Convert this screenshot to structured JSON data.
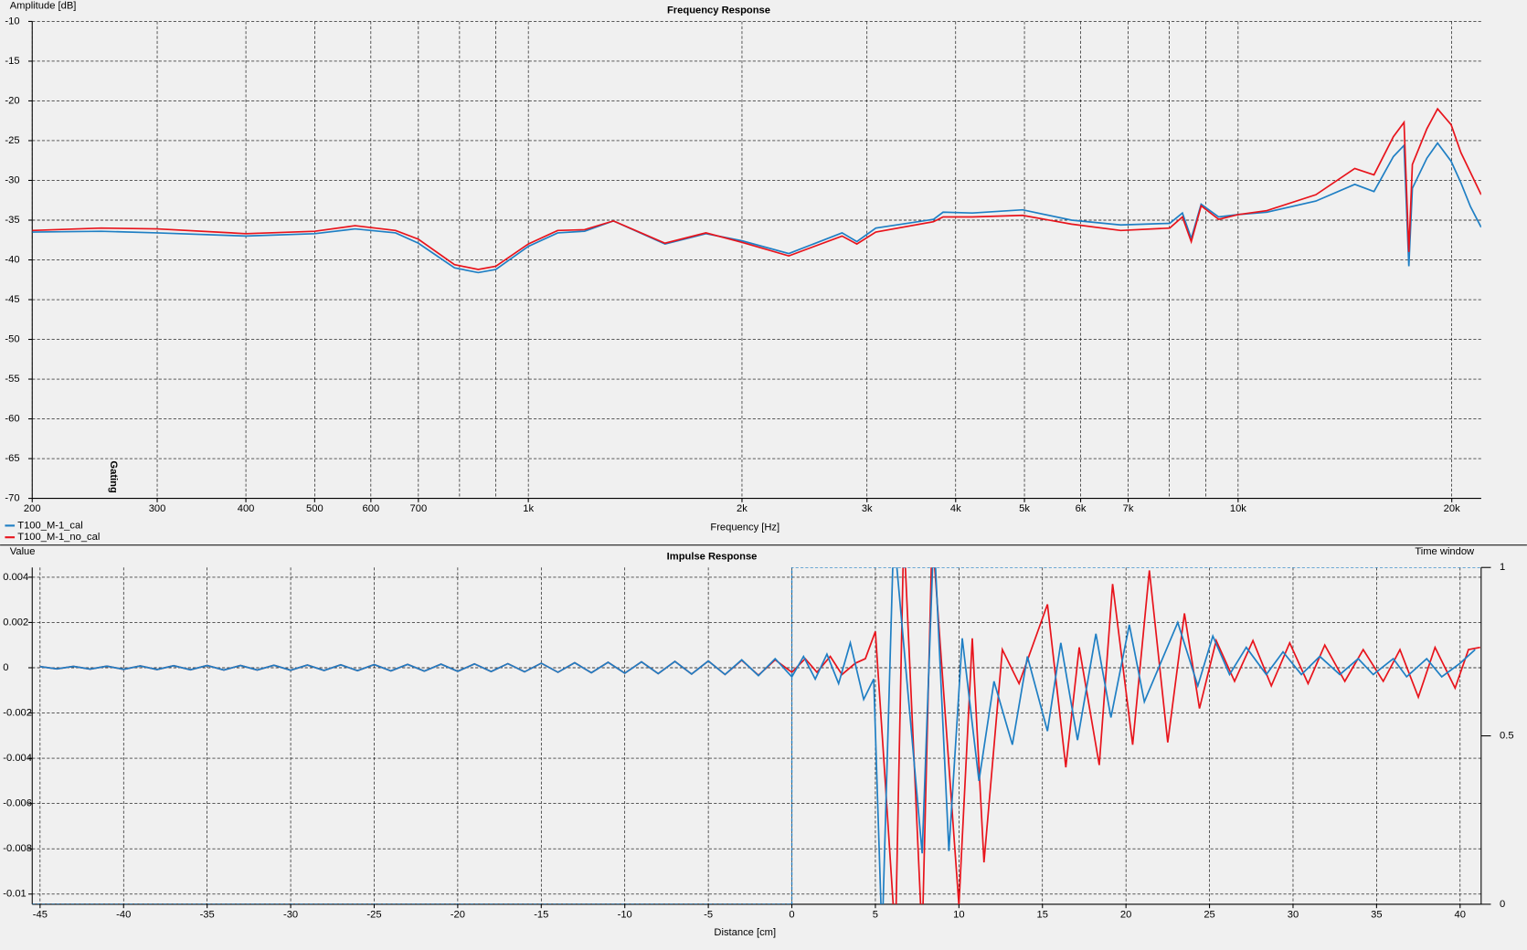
{
  "chart_data": [
    {
      "type": "line",
      "title": "Frequency Response",
      "y_label": "Amplitude [dB]",
      "x_label": "Frequency [Hz]",
      "xscale": "log",
      "xlim": [
        200,
        22000
      ],
      "ylim": [
        -70,
        -10
      ],
      "xticks": [
        200,
        300,
        400,
        500,
        600,
        700,
        {
          "value": 1000,
          "label": "1k"
        },
        {
          "value": 2000,
          "label": "2k"
        },
        {
          "value": 3000,
          "label": "3k"
        },
        {
          "value": 4000,
          "label": "4k"
        },
        {
          "value": 5000,
          "label": "5k"
        },
        {
          "value": 6000,
          "label": "6k"
        },
        {
          "value": 7000,
          "label": "7k"
        },
        {
          "value": 10000,
          "label": "10k"
        },
        {
          "value": 20000,
          "label": "20k"
        }
      ],
      "xgrid_unlabeled": [
        800,
        900,
        8000,
        9000
      ],
      "yticks": [
        -70,
        -65,
        -60,
        -55,
        -50,
        -45,
        -40,
        -35,
        -30,
        -25,
        -20,
        -15,
        -10
      ],
      "grid": true,
      "marker": {
        "label": "Gating",
        "x": 260
      },
      "x": [
        200,
        250,
        300,
        400,
        500,
        570,
        650,
        700,
        787,
        850,
        900,
        1000,
        1100,
        1200,
        1318,
        1558,
        1779,
        2000,
        2328,
        2767,
        2903,
        3087,
        3722,
        3840,
        4222,
        4970,
        5826,
        6833,
        8010,
        8347,
        8590,
        8870,
        9390,
        10000,
        10980,
        12870,
        14600,
        15540,
        16550,
        17130,
        17400,
        17600,
        18450,
        19100,
        19960,
        20600,
        21250,
        22000
      ],
      "series": [
        {
          "name": "T100_M-1_cal",
          "color": "#1f7fc4",
          "values": [
            -36.5,
            -36.4,
            -36.6,
            -37.0,
            -36.7,
            -36.1,
            -36.6,
            -37.9,
            -41.0,
            -41.6,
            -41.2,
            -38.3,
            -36.6,
            -36.4,
            -35.1,
            -38.0,
            -36.7,
            -37.6,
            -39.2,
            -36.6,
            -37.7,
            -36.0,
            -34.9,
            -34.0,
            -34.1,
            -33.7,
            -35.0,
            -35.6,
            -35.4,
            -34.1,
            -37.3,
            -33.0,
            -34.6,
            -34.3,
            -34.0,
            -32.6,
            -30.5,
            -31.4,
            -27.0,
            -25.6,
            -40.8,
            -31.0,
            -27.2,
            -25.3,
            -27.6,
            -30.3,
            -33.3,
            -35.9
          ]
        },
        {
          "name": "T100_M-1_no_cal",
          "color": "#e8141c",
          "values": [
            -36.3,
            -36.0,
            -36.1,
            -36.7,
            -36.4,
            -35.7,
            -36.3,
            -37.4,
            -40.6,
            -41.2,
            -40.8,
            -38.0,
            -36.3,
            -36.2,
            -35.1,
            -37.9,
            -36.6,
            -37.8,
            -39.5,
            -37.0,
            -38.0,
            -36.5,
            -35.2,
            -34.6,
            -34.6,
            -34.4,
            -35.5,
            -36.3,
            -36.0,
            -34.6,
            -37.7,
            -33.2,
            -34.9,
            -34.3,
            -33.8,
            -31.8,
            -28.5,
            -29.3,
            -24.5,
            -22.7,
            -39.0,
            -28.0,
            -23.5,
            -21.0,
            -23.0,
            -26.5,
            -29.0,
            -31.8
          ]
        }
      ]
    },
    {
      "type": "line",
      "title": "Impulse Response",
      "y_label": "Value",
      "y2_label": "Time window",
      "x_label": "Distance [cm]",
      "xlim": [
        -45.47,
        41.26
      ],
      "ylim": [
        -0.01045,
        0.00443
      ],
      "y2lim": [
        0,
        1
      ],
      "xticks": [
        -45,
        -40,
        -35,
        -30,
        -25,
        -20,
        -15,
        -10,
        -5,
        0,
        5,
        10,
        15,
        20,
        25,
        30,
        35,
        40
      ],
      "yticks": [
        -0.01,
        -0.008,
        -0.006,
        -0.004,
        -0.002,
        0,
        0.002,
        0.004
      ],
      "y2ticks": [
        0,
        0.5,
        1
      ],
      "grid": true,
      "series": [
        {
          "color": "#e8141c",
          "x": [
            -45,
            -44,
            -43,
            -42,
            -41,
            -40,
            -39,
            -38,
            -37,
            -36,
            -35,
            -34,
            -33,
            -32,
            -31,
            -30,
            -29,
            -28,
            -27,
            -26,
            -25,
            -24,
            -23,
            -22,
            -21,
            -20,
            -19,
            -18,
            -17,
            -16,
            -15,
            -14,
            -13,
            -12,
            -11,
            -10,
            -9,
            -8,
            -7,
            -6,
            -5,
            -4,
            -3,
            -2,
            -1,
            0,
            0.8,
            1.5,
            2.3,
            3.0,
            3.8,
            4.4,
            5.0,
            5.5,
            6.2,
            6.7,
            7.8,
            8.4,
            10,
            10.8,
            11.5,
            12.6,
            13.6,
            15.3,
            16.4,
            17.2,
            18.4,
            19.2,
            20.4,
            21.4,
            22.5,
            23.5,
            24.4,
            25.4,
            26.5,
            27.6,
            28.7,
            29.8,
            30.9,
            31.9,
            33.1,
            34.2,
            35.4,
            36.4,
            37.5,
            38.5,
            39.7,
            40.5,
            41.2
          ],
          "values": [
            5e-05,
            -5e-05,
            6e-05,
            -6e-05,
            7e-05,
            -7e-05,
            8e-05,
            -8e-05,
            9e-05,
            -9e-05,
            0.0001,
            -0.0001,
            0.0001,
            -0.0001,
            0.00011,
            -0.00011,
            0.00012,
            -0.00012,
            0.00013,
            -0.00013,
            0.00014,
            -0.00014,
            0.00015,
            -0.00015,
            0.00016,
            -0.00016,
            0.00017,
            -0.00017,
            0.00018,
            -0.00018,
            0.0002,
            -0.0002,
            0.00022,
            -0.00022,
            0.00024,
            -0.00024,
            0.00026,
            -0.00026,
            0.00028,
            -0.00028,
            0.0003,
            -0.0003,
            0.00033,
            -0.00033,
            0.00035,
            -0.0002,
            0.0004,
            -0.0002,
            0.0005,
            -0.0003,
            0.0002,
            0.0004,
            0.0016,
            -0.004,
            -0.012,
            0.006,
            -0.012,
            0.006,
            -0.0105,
            0.0013,
            -0.0086,
            0.0008,
            -0.0007,
            0.0028,
            -0.0044,
            0.0009,
            -0.0043,
            0.0037,
            -0.0034,
            0.0043,
            -0.0033,
            0.0024,
            -0.0018,
            0.0012,
            -0.0006,
            0.0012,
            -0.0008,
            0.0011,
            -0.0007,
            0.001,
            -0.0006,
            0.0008,
            -0.0006,
            0.0008,
            -0.0013,
            0.0009,
            -0.0009,
            0.0008,
            0.0009
          ]
        },
        {
          "color": "#1f7fc4",
          "x": [
            -45,
            -44,
            -43,
            -42,
            -41,
            -40,
            -39,
            -38,
            -37,
            -36,
            -35,
            -34,
            -33,
            -32,
            -31,
            -30,
            -29,
            -28,
            -27,
            -26,
            -25,
            -24,
            -23,
            -22,
            -21,
            -20,
            -19,
            -18,
            -17,
            -16,
            -15,
            -14,
            -13,
            -12,
            -11,
            -10,
            -9,
            -8,
            -7,
            -6,
            -5,
            -4,
            -3,
            -2,
            -1,
            0,
            0.7,
            1.4,
            2.1,
            2.8,
            3.5,
            4.3,
            4.9,
            5.4,
            6.1,
            7.8,
            8.5,
            9.4,
            10.2,
            11.2,
            12.1,
            13.2,
            14.1,
            15.3,
            16.1,
            17.1,
            18.2,
            19.1,
            20.2,
            21.1,
            23.1,
            24.3,
            25.2,
            26.2,
            27.2,
            28.4,
            29.4,
            30.5,
            31.6,
            32.8,
            33.9,
            34.8,
            36,
            36.8,
            38,
            38.9,
            40,
            40.9
          ],
          "values": [
            5e-05,
            -5e-05,
            6e-05,
            -6e-05,
            7e-05,
            -7e-05,
            8e-05,
            -8e-05,
            9e-05,
            -9e-05,
            0.0001,
            -0.0001,
            0.0001,
            -0.0001,
            0.00011,
            -0.00011,
            0.00012,
            -0.00012,
            0.00013,
            -0.00013,
            0.00014,
            -0.00014,
            0.00015,
            -0.00015,
            0.00016,
            -0.00016,
            0.00017,
            -0.00017,
            0.00018,
            -0.00018,
            0.0002,
            -0.0002,
            0.00022,
            -0.00022,
            0.00024,
            -0.00024,
            0.00026,
            -0.00026,
            0.00028,
            -0.00028,
            0.0003,
            -0.0003,
            0.00035,
            -0.00035,
            0.0004,
            -0.0004,
            0.0005,
            -0.0005,
            0.0006,
            -0.0007,
            0.0011,
            -0.0014,
            -0.0005,
            -0.012,
            0.006,
            -0.0082,
            0.006,
            -0.0081,
            0.0013,
            -0.005,
            -0.0006,
            -0.0034,
            0.0005,
            -0.0028,
            0.0011,
            -0.0032,
            0.0015,
            -0.0022,
            0.0019,
            -0.0015,
            0.002,
            -0.0008,
            0.0014,
            -0.0003,
            0.0009,
            -0.0003,
            0.0007,
            -0.0003,
            0.0005,
            -0.0003,
            0.0004,
            -0.0003,
            0.0004,
            -0.0004,
            0.0004,
            -0.0004,
            0.0002,
            0.0008
          ]
        },
        {
          "color": "#1f7fc4",
          "axis": "y2",
          "dashed": true,
          "x": [
            -45.47,
            0,
            0,
            41.26
          ],
          "values": [
            0,
            0,
            1,
            1
          ]
        }
      ]
    }
  ]
}
